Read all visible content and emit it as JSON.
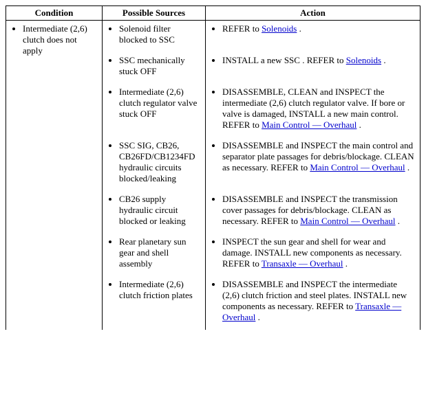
{
  "headers": {
    "condition": "Condition",
    "sources": "Possible Sources",
    "action": "Action"
  },
  "condition": "Intermediate (2,6) clutch does not apply",
  "rows": [
    {
      "source": "Solenoid filter blocked to SSC",
      "action_pre": "REFER to ",
      "link": "Solenoids",
      "action_post": " ."
    },
    {
      "source": "SSC mechanically stuck OFF",
      "action_pre": "INSTALL a new SSC . REFER to ",
      "link": "Solenoids",
      "action_post": " ."
    },
    {
      "source": "Intermediate (2,6) clutch regulator valve stuck OFF",
      "action_pre": "DISASSEMBLE, CLEAN and INSPECT the intermediate (2,6) clutch regulator valve. If bore or valve is damaged, INSTALL a new main control. REFER to ",
      "link": "Main Control — Overhaul",
      "action_post": " ."
    },
    {
      "source": "SSC SIG, CB26, CB26FD/CB1234FD hydraulic circuits blocked/leaking",
      "action_pre": "DISASSEMBLE and INSPECT the main control and separator plate passages for debris/blockage. CLEAN as necessary. REFER to ",
      "link": "Main Control — Overhaul",
      "action_post": " ."
    },
    {
      "source": "CB26 supply hydraulic circuit blocked or leaking",
      "action_pre": "DISASSEMBLE and INSPECT the transmission cover passages for debris/blockage. CLEAN as necessary. REFER to ",
      "link": "Main Control — Overhaul",
      "action_post": " ."
    },
    {
      "source": "Rear planetary sun gear and shell assembly",
      "action_pre": "INSPECT the sun gear and shell for wear and damage. INSTALL new components as necessary. REFER to ",
      "link": "Transaxle — Overhaul",
      "action_post": " ."
    },
    {
      "source": "Intermediate (2,6) clutch friction plates",
      "action_pre": "DISASSEMBLE and INSPECT the intermediate (2,6) clutch friction and steel plates. INSTALL new components as necessary. REFER to ",
      "link": "Transaxle — Overhaul",
      "action_post": " ."
    }
  ]
}
